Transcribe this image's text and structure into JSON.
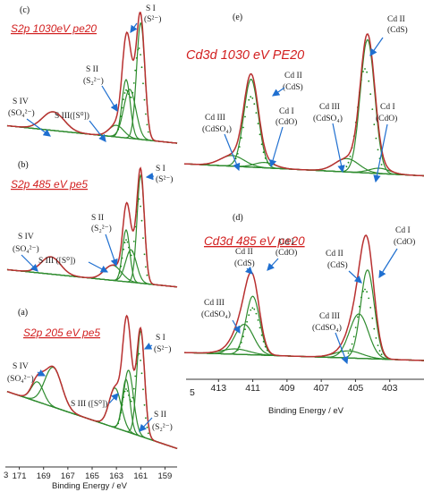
{
  "panels": {
    "c": {
      "letter": "(c)",
      "title": "S2p 1030eV pe20",
      "annotations": [
        {
          "line1": "S I",
          "line2": "(S²⁻)"
        },
        {
          "line1": "S II",
          "line2": "(S₂²⁻)"
        },
        {
          "line1": "S IV",
          "line2": "(SO₄²⁻)"
        },
        {
          "line1": "S III([S⁰])",
          "line2": ""
        }
      ]
    },
    "b": {
      "letter": "(b)",
      "title": "S2p 485 eV pe5",
      "annotations": [
        {
          "line1": "S I",
          "line2": "(S²⁻)"
        },
        {
          "line1": "S II",
          "line2": "(S₂²⁻)"
        },
        {
          "line1": "S IV",
          "line2": "(SO₄²⁻)"
        },
        {
          "line1": "S III ([S⁰])",
          "line2": ""
        }
      ]
    },
    "a": {
      "letter": "(a)",
      "title": "S2p 205 eV pe5",
      "annotations": [
        {
          "line1": "S I",
          "line2": "(S²⁻)"
        },
        {
          "line1": "S IV",
          "line2": "(SO₄²⁻)"
        },
        {
          "line1": "S III ([S⁰])",
          "line2": ""
        },
        {
          "line1": "S II",
          "line2": "(S₂²⁻)"
        }
      ]
    },
    "e": {
      "letter": "(e)",
      "title": "Cd3d 1030 eV PE20",
      "annotations": [
        {
          "line1": "Cd II",
          "line2": "(CdS)"
        },
        {
          "line1": "Cd II",
          "line2": "(CdS)"
        },
        {
          "line1": "Cd I",
          "line2": "(CdO)"
        },
        {
          "line1": "Cd III",
          "line2": "(CdSO₄)"
        },
        {
          "line1": "Cd III",
          "line2": "(CdSO₄)"
        },
        {
          "line1": "Cd I",
          "line2": "(CdO)"
        }
      ]
    },
    "d": {
      "letter": "(d)",
      "title": "Cd3d 485 eV pe20",
      "annotations": [
        {
          "line1": "Cd I",
          "line2": "(CdO)"
        },
        {
          "line1": "Cd I",
          "line2": "(CdO)"
        },
        {
          "line1": "Cd II",
          "line2": "(CdS)"
        },
        {
          "line1": "Cd III",
          "line2": "(CdSO₄)"
        },
        {
          "line1": "Cd    II",
          "line2": "(CdS)"
        },
        {
          "line1": "Cd III",
          "line2": "(CdSO₄)"
        }
      ]
    }
  },
  "chart_data": [
    {
      "type": "line",
      "title": "S2p 1030eV pe20",
      "xlabel": "",
      "ylabel": "",
      "xlim": [
        172,
        158
      ],
      "series": [
        {
          "name": "S I",
          "x": [
            158,
            159,
            160,
            160.5,
            161,
            161.3,
            161.6,
            162,
            162.5,
            163,
            164,
            165,
            166,
            167,
            168,
            168.5,
            169,
            170,
            171,
            172
          ],
          "y": [
            0.02,
            0.04,
            0.18,
            0.6,
            1.0,
            0.85,
            0.62,
            0.78,
            0.5,
            0.42,
            0.22,
            0.1,
            0.06,
            0.08,
            0.14,
            0.2,
            0.15,
            0.08,
            0.05,
            0.04
          ]
        }
      ]
    },
    {
      "type": "line",
      "title": "S2p 485 eV pe5",
      "xlabel": "",
      "ylabel": "",
      "xlim": [
        172,
        158
      ],
      "series": [
        {
          "name": "S I",
          "x": [
            158,
            159,
            160,
            160.5,
            161,
            161.3,
            161.6,
            162,
            162.5,
            163,
            164,
            165,
            166,
            167,
            168,
            168.5,
            169,
            170,
            171,
            172
          ],
          "y": [
            0.02,
            0.04,
            0.18,
            0.6,
            1.0,
            0.8,
            0.5,
            0.62,
            0.4,
            0.32,
            0.18,
            0.12,
            0.08,
            0.1,
            0.2,
            0.26,
            0.2,
            0.14,
            0.1,
            0.08
          ]
        }
      ]
    },
    {
      "type": "line",
      "title": "S2p 205 eV pe5",
      "xlabel": "Binding Energy / eV",
      "ylabel": "",
      "xlim": [
        172,
        158
      ],
      "x_ticks": [
        171,
        169,
        167,
        165,
        163,
        161,
        159
      ],
      "series": [
        {
          "name": "S I",
          "x": [
            158,
            159,
            160,
            160.5,
            161,
            161.3,
            161.6,
            162,
            162.5,
            163,
            164,
            165,
            166,
            167,
            168,
            168.5,
            169,
            169.5,
            170,
            171,
            172
          ],
          "y": [
            0.02,
            0.05,
            0.3,
            0.8,
            1.0,
            0.82,
            0.7,
            0.85,
            0.6,
            0.45,
            0.28,
            0.26,
            0.4,
            0.55,
            0.7,
            0.74,
            0.7,
            0.76,
            0.68,
            0.64,
            0.6
          ]
        }
      ]
    },
    {
      "type": "line",
      "title": "Cd3d 1030 eV PE20",
      "xlabel": "",
      "ylabel": "",
      "xlim": [
        415,
        401
      ],
      "series": [
        {
          "name": "Cd II",
          "x": [
            401,
            402,
            403,
            403.5,
            404,
            404.3,
            404.6,
            405,
            406,
            407,
            408,
            409,
            410,
            410.5,
            411,
            411.3,
            411.6,
            412,
            413,
            414,
            415
          ],
          "y": [
            0.02,
            0.05,
            0.2,
            0.55,
            0.95,
            1.0,
            0.9,
            0.55,
            0.12,
            0.06,
            0.06,
            0.1,
            0.3,
            0.56,
            0.7,
            0.66,
            0.5,
            0.28,
            0.12,
            0.08,
            0.06
          ]
        }
      ]
    },
    {
      "type": "line",
      "title": "Cd3d 485 eV pe20",
      "xlabel": "Binding Energy / eV",
      "ylabel": "",
      "xlim": [
        415,
        401
      ],
      "x_ticks": [
        413,
        411,
        409,
        407,
        405,
        403
      ],
      "series": [
        {
          "name": "Cd I",
          "x": [
            401,
            402,
            403,
            403.5,
            404,
            404.3,
            404.6,
            405,
            406,
            407,
            408,
            409,
            410,
            410.5,
            411,
            411.3,
            411.6,
            412,
            413,
            414,
            415
          ],
          "y": [
            0.02,
            0.05,
            0.2,
            0.55,
            0.95,
            1.0,
            0.9,
            0.55,
            0.12,
            0.06,
            0.06,
            0.1,
            0.3,
            0.56,
            0.7,
            0.66,
            0.5,
            0.28,
            0.12,
            0.08,
            0.06
          ]
        }
      ]
    }
  ],
  "left_axis": {
    "ticks": [
      {
        "v": 171,
        "label": "171"
      },
      {
        "v": 169,
        "label": "169"
      },
      {
        "v": 167,
        "label": "167"
      },
      {
        "v": 165,
        "label": "165"
      },
      {
        "v": 163,
        "label": "163"
      },
      {
        "v": 161,
        "label": "161"
      },
      {
        "v": 159,
        "label": "159"
      }
    ],
    "partial_label": "3",
    "label": "Binding Energy / eV"
  },
  "right_axis": {
    "ticks": [
      {
        "v": 413,
        "label": "413"
      },
      {
        "v": 411,
        "label": "411"
      },
      {
        "v": 409,
        "label": "409"
      },
      {
        "v": 407,
        "label": "407"
      },
      {
        "v": 405,
        "label": "405"
      },
      {
        "v": 403,
        "label": "403"
      }
    ],
    "partial_label": "5",
    "label": "Binding Energy / eV"
  },
  "colors": {
    "envelope": "#b83030",
    "fit": "#2e8b2e",
    "points": "#1a8a1a",
    "background_line": "#3aa03a",
    "title": "#d22020",
    "arrow": "#1f6fd0"
  }
}
